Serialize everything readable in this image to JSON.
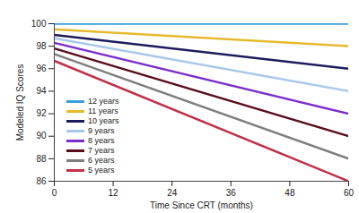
{
  "chart_data": {
    "type": "line",
    "xlabel": "Time Since CRT (months)",
    "ylabel": "Modeled IQ Scores",
    "x": [
      0,
      60
    ],
    "series": [
      {
        "name": "12 years",
        "color": "#3a9ee0",
        "values": [
          100,
          100
        ]
      },
      {
        "name": "11 years",
        "color": "#e6b92e",
        "values": [
          99.5,
          98
        ]
      },
      {
        "name": "10 years",
        "color": "#1c1c5c",
        "values": [
          99,
          96
        ]
      },
      {
        "name": "9 years",
        "color": "#a9c9ea",
        "values": [
          98.7,
          94
        ]
      },
      {
        "name": "8 years",
        "color": "#7b2dcb",
        "values": [
          98.3,
          92
        ]
      },
      {
        "name": "7 years",
        "color": "#5a0c1c",
        "values": [
          97.8,
          90
        ]
      },
      {
        "name": "6 years",
        "color": "#7f7f7f",
        "values": [
          97.3,
          88
        ]
      },
      {
        "name": "5 years",
        "color": "#c23149",
        "values": [
          96.7,
          86
        ]
      }
    ],
    "xlim": [
      0,
      60
    ],
    "xticks": [
      0,
      12,
      24,
      36,
      48,
      60
    ],
    "ylim": [
      86,
      100
    ],
    "yticks": [
      86,
      88,
      90,
      92,
      94,
      96,
      98,
      100
    ],
    "grid": false,
    "legend": "left"
  }
}
